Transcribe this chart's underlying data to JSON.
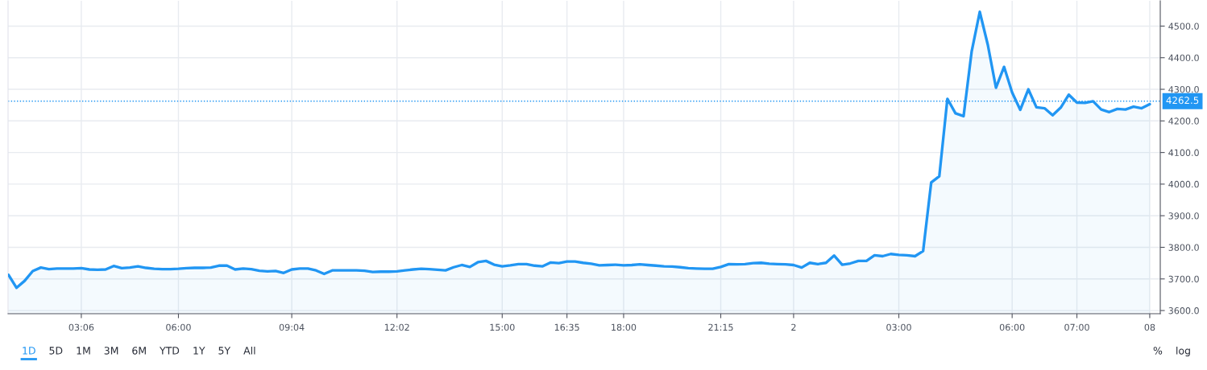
{
  "chart_data": {
    "type": "area",
    "categories": [
      null,
      null,
      null,
      null,
      null,
      null,
      null,
      null,
      null,
      "03:06",
      null,
      null,
      null,
      null,
      null,
      null,
      null,
      null,
      null,
      null,
      null,
      "06:00",
      null,
      null,
      null,
      null,
      null,
      null,
      null,
      null,
      null,
      null,
      null,
      null,
      null,
      "09:04",
      null,
      null,
      null,
      null,
      null,
      null,
      null,
      null,
      null,
      null,
      null,
      null,
      "12:02",
      null,
      null,
      null,
      null,
      null,
      null,
      null,
      null,
      null,
      null,
      null,
      null,
      "15:00",
      null,
      null,
      null,
      null,
      null,
      null,
      null,
      "16:35",
      null,
      null,
      null,
      null,
      null,
      null,
      "18:00",
      null,
      null,
      null,
      null,
      null,
      null,
      null,
      null,
      null,
      null,
      null,
      "21:15",
      null,
      null,
      null,
      null,
      null,
      null,
      null,
      null,
      "2",
      null,
      null,
      null,
      null,
      null,
      null,
      null,
      null,
      null,
      null,
      null,
      null,
      "03:00",
      null,
      null,
      null,
      null,
      null,
      null,
      null,
      null,
      null,
      null,
      null,
      null,
      null,
      "06:00",
      null,
      null,
      null,
      null,
      null,
      null,
      null,
      "07:00",
      null,
      null,
      null,
      null,
      null,
      null,
      null,
      null,
      "08"
    ],
    "values": [
      3713,
      3672,
      3694,
      3725,
      3736,
      3731,
      3733,
      3733,
      3733,
      3734,
      3730,
      3729,
      3730,
      3741,
      3734,
      3736,
      3740,
      3735,
      3732,
      3731,
      3731,
      3732,
      3734,
      3735,
      3735,
      3736,
      3742,
      3742,
      3730,
      3733,
      3731,
      3726,
      3724,
      3725,
      3719,
      3730,
      3733,
      3733,
      3727,
      3716,
      3727,
      3727,
      3727,
      3727,
      3726,
      3722,
      3723,
      3723,
      3724,
      3727,
      3730,
      3732,
      3731,
      3729,
      3727,
      3737,
      3744,
      3738,
      3753,
      3757,
      3745,
      3740,
      3743,
      3747,
      3747,
      3742,
      3740,
      3752,
      3750,
      3755,
      3755,
      3751,
      3748,
      3743,
      3744,
      3745,
      3743,
      3744,
      3746,
      3744,
      3742,
      3740,
      3739,
      3737,
      3734,
      3733,
      3732,
      3732,
      3738,
      3747,
      3746,
      3747,
      3750,
      3751,
      3748,
      3747,
      3746,
      3744,
      3736,
      3751,
      3747,
      3751,
      3774,
      3745,
      3749,
      3757,
      3757,
      3775,
      3772,
      3779,
      3776,
      3775,
      3772,
      3788,
      4005,
      4025,
      4270,
      4224,
      4215,
      4420,
      4545,
      4440,
      4305,
      4371,
      4290,
      4235,
      4300,
      4243,
      4240,
      4218,
      4242,
      4283,
      4258,
      4257,
      4262,
      4236,
      4228,
      4238,
      4236,
      4245,
      4240,
      4253
    ],
    "color": "#2196f3",
    "ylim": [
      3590,
      4580
    ],
    "yticks": [
      {
        "value": 3600,
        "label": "3600.0"
      },
      {
        "value": 3700,
        "label": "3700.0"
      },
      {
        "value": 3800,
        "label": "3800.0"
      },
      {
        "value": 3900,
        "label": "3900.0"
      },
      {
        "value": 4000,
        "label": "4000.0"
      },
      {
        "value": 4100,
        "label": "4100.0"
      },
      {
        "value": 4200,
        "label": "4200.0"
      },
      {
        "value": 4300,
        "label": "4300.0"
      },
      {
        "value": 4400,
        "label": "4400.0"
      },
      {
        "value": 4500,
        "label": "4500.0"
      }
    ],
    "grid": true,
    "ref_lines": [
      {
        "axis": "y",
        "value": 4262.5,
        "label": "4262.5",
        "color": "#2196f3",
        "line_style": "dotted"
      }
    ],
    "annotations": [
      "1D",
      "5D",
      "1M",
      "3M",
      "6M",
      "YTD",
      "1Y",
      "5Y",
      "All",
      "%",
      "log"
    ]
  }
}
